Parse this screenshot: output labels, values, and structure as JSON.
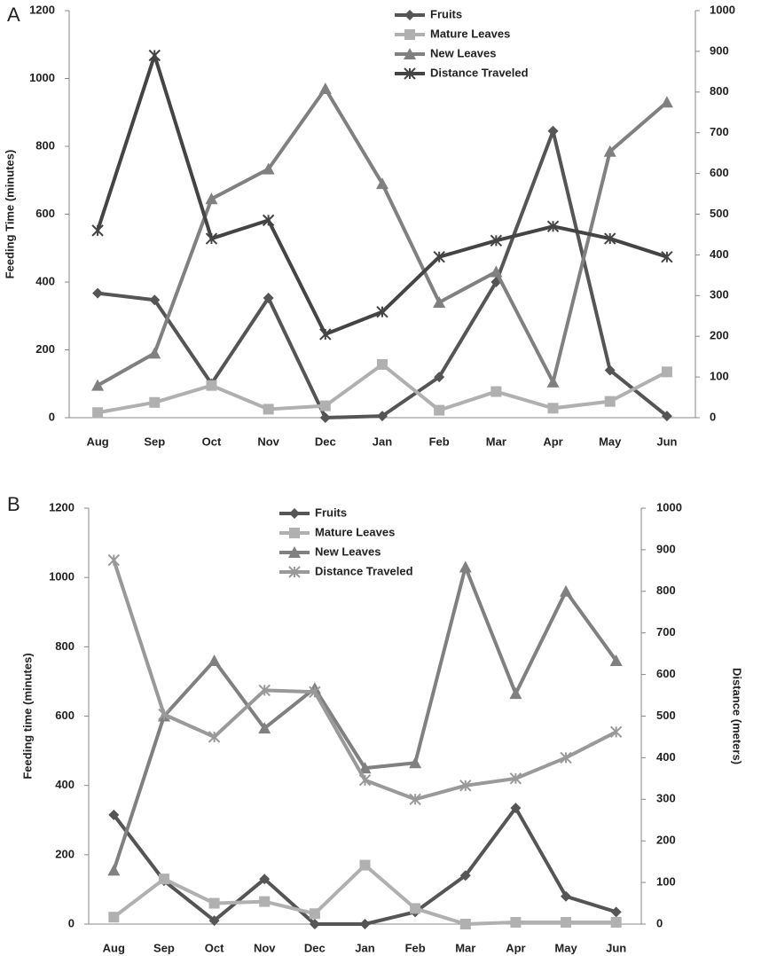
{
  "chart_data": [
    {
      "type": "line",
      "label": "A",
      "ylabel": "Feeding Time (minutes)",
      "categories": [
        "Aug",
        "Sep",
        "Oct",
        "Nov",
        "Dec",
        "Jan",
        "Feb",
        "Mar",
        "Apr",
        "May",
        "Jun"
      ],
      "ylim": [
        0,
        1200
      ],
      "yticks": [
        0,
        200,
        400,
        600,
        800,
        1000,
        1200
      ],
      "y2lim": [
        0,
        1000
      ],
      "y2ticks": [
        0,
        100,
        200,
        300,
        400,
        500,
        600,
        700,
        800,
        900,
        1000
      ],
      "grid": false,
      "legend": "top",
      "series": [
        {
          "name": "Fruits",
          "color": "#555555",
          "marker": "diamond",
          "values": [
            367,
            347,
            100,
            353,
            0,
            5,
            120,
            400,
            845,
            140,
            5
          ]
        },
        {
          "name": "Mature Leaves",
          "color": "#b0b0b0",
          "marker": "square",
          "values": [
            15,
            45,
            95,
            25,
            35,
            157,
            22,
            77,
            28,
            48,
            135
          ]
        },
        {
          "name": "New Leaves",
          "color": "#808080",
          "marker": "triangle",
          "values": [
            95,
            190,
            645,
            733,
            970,
            690,
            340,
            430,
            105,
            785,
            930
          ]
        },
        {
          "name": "Distance Traveled",
          "color": "#444444",
          "marker": "x",
          "axis": "y2",
          "values": [
            460,
            890,
            440,
            485,
            205,
            260,
            395,
            435,
            470,
            440,
            395
          ]
        }
      ]
    },
    {
      "type": "line",
      "label": "B",
      "ylabel": "Feeding time (minutes)",
      "y2label": "Distance (meters)",
      "categories": [
        "Aug",
        "Sep",
        "Oct",
        "Nov",
        "Dec",
        "Jan",
        "Feb",
        "Mar",
        "Apr",
        "May",
        "Jun"
      ],
      "ylim": [
        0,
        1200
      ],
      "yticks": [
        0,
        200,
        400,
        600,
        800,
        1000,
        1200
      ],
      "y2lim": [
        0,
        1000
      ],
      "y2ticks": [
        0,
        100,
        200,
        300,
        400,
        500,
        600,
        700,
        800,
        900,
        1000
      ],
      "grid": false,
      "legend": "top",
      "series": [
        {
          "name": "Fruits",
          "color": "#555555",
          "marker": "diamond",
          "values": [
            315,
            125,
            10,
            130,
            0,
            0,
            35,
            140,
            335,
            80,
            35
          ]
        },
        {
          "name": "Mature Leaves",
          "color": "#b0b0b0",
          "marker": "square",
          "values": [
            20,
            130,
            60,
            65,
            30,
            170,
            45,
            0,
            5,
            5,
            5
          ]
        },
        {
          "name": "New Leaves",
          "color": "#808080",
          "marker": "triangle",
          "values": [
            155,
            600,
            760,
            565,
            680,
            450,
            465,
            1030,
            665,
            960,
            760
          ]
        },
        {
          "name": "Distance Traveled",
          "color": "#999999",
          "marker": "x",
          "axis": "y2",
          "values": [
            875,
            504,
            450,
            562,
            558,
            346,
            300,
            333,
            350,
            400,
            462
          ]
        }
      ]
    }
  ]
}
